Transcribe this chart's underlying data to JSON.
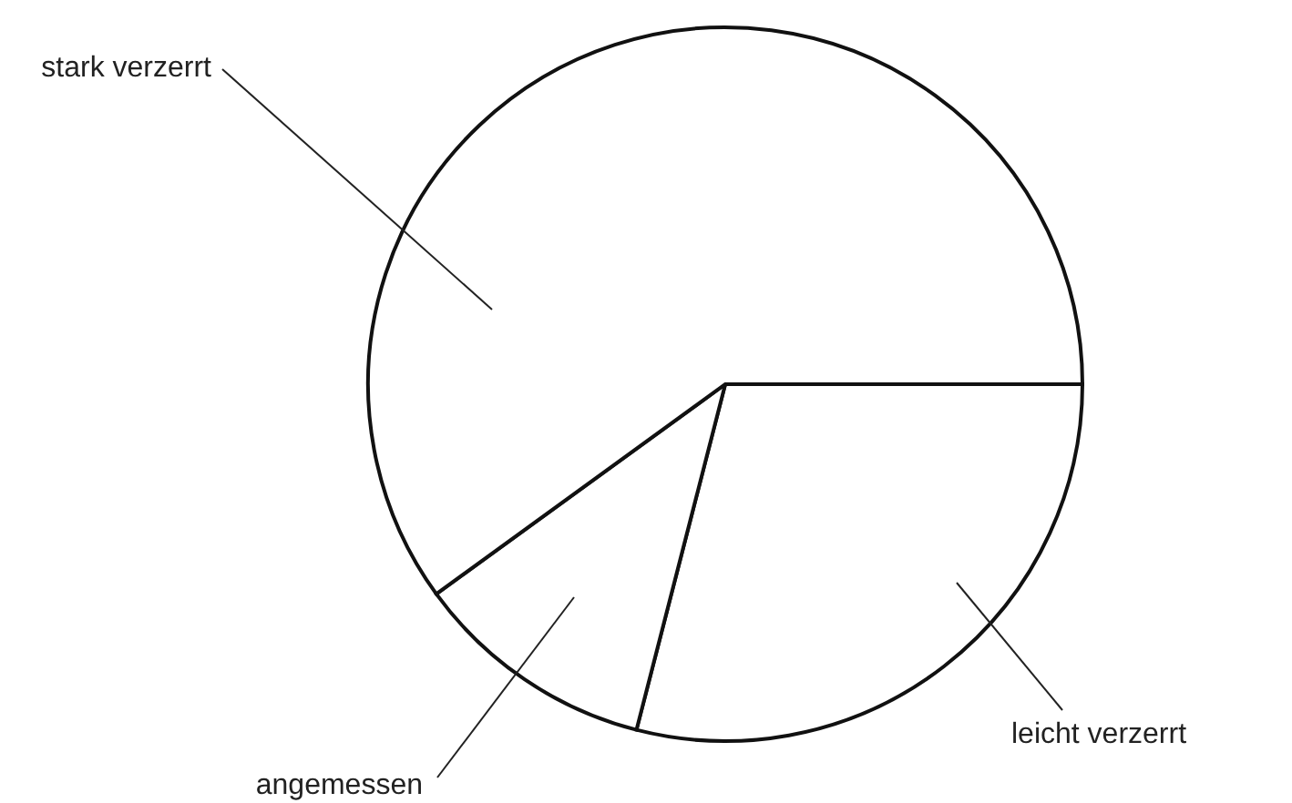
{
  "chart_data": {
    "type": "pie",
    "categories": [
      "leicht verzerrt",
      "angemessen",
      "stark verzerrt"
    ],
    "values": [
      29,
      11,
      60
    ],
    "colors": [
      "#ffffff",
      "#ffffff",
      "#ffffff"
    ]
  }
}
